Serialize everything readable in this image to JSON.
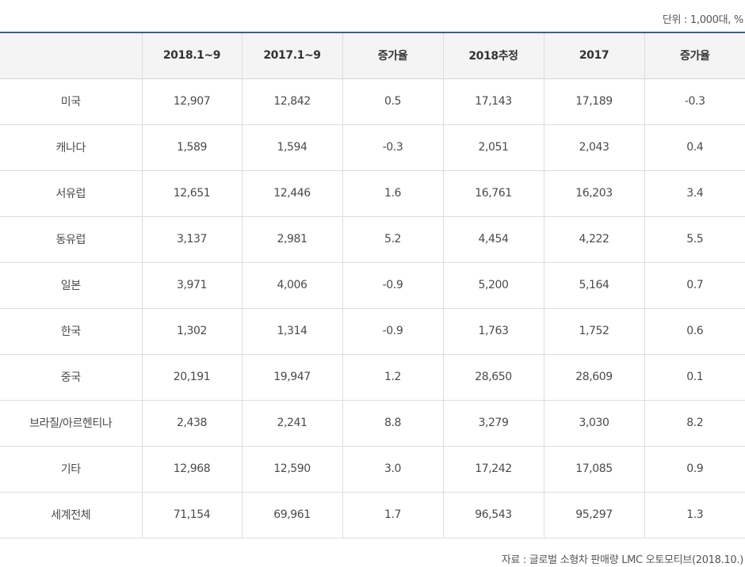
{
  "unit_note": "단위 : 1,000대, %",
  "table": {
    "headers": [
      "",
      "2018.1~9",
      "2017.1~9",
      "증가율",
      "2018추정",
      "2017",
      "증가율"
    ],
    "rows": [
      [
        "미국",
        "12,907",
        "12,842",
        "0.5",
        "17,143",
        "17,189",
        "-0.3"
      ],
      [
        "캐나다",
        "1,589",
        "1,594",
        "-0.3",
        "2,051",
        "2,043",
        "0.4"
      ],
      [
        "서유럽",
        "12,651",
        "12,446",
        "1.6",
        "16,761",
        "16,203",
        "3.4"
      ],
      [
        "동유럽",
        "3,137",
        "2,981",
        "5.2",
        "4,454",
        "4,222",
        "5.5"
      ],
      [
        "일본",
        "3,971",
        "4,006",
        "-0.9",
        "5,200",
        "5,164",
        "0.7"
      ],
      [
        "한국",
        "1,302",
        "1,314",
        "-0.9",
        "1,763",
        "1,752",
        "0.6"
      ],
      [
        "중국",
        "20,191",
        "19,947",
        "1.2",
        "28,650",
        "28,609",
        "0.1"
      ],
      [
        "브라질/아르헨티나",
        "2,438",
        "2,241",
        "8.8",
        "3,279",
        "3,030",
        "8.2"
      ],
      [
        "기타",
        "12,968",
        "12,590",
        "3.0",
        "17,242",
        "17,085",
        "0.9"
      ],
      [
        "세계전체",
        "71,154",
        "69,961",
        "1.7",
        "96,543",
        "95,297",
        "1.3"
      ]
    ]
  },
  "source_note": "자료 : 글로벌 소형차 판매량 LMC 오토모티브(2018.10.)",
  "colors": {
    "header_rule": "#3f5f88",
    "header_bg": "#f4f4f4",
    "grid": "#dddddd"
  }
}
